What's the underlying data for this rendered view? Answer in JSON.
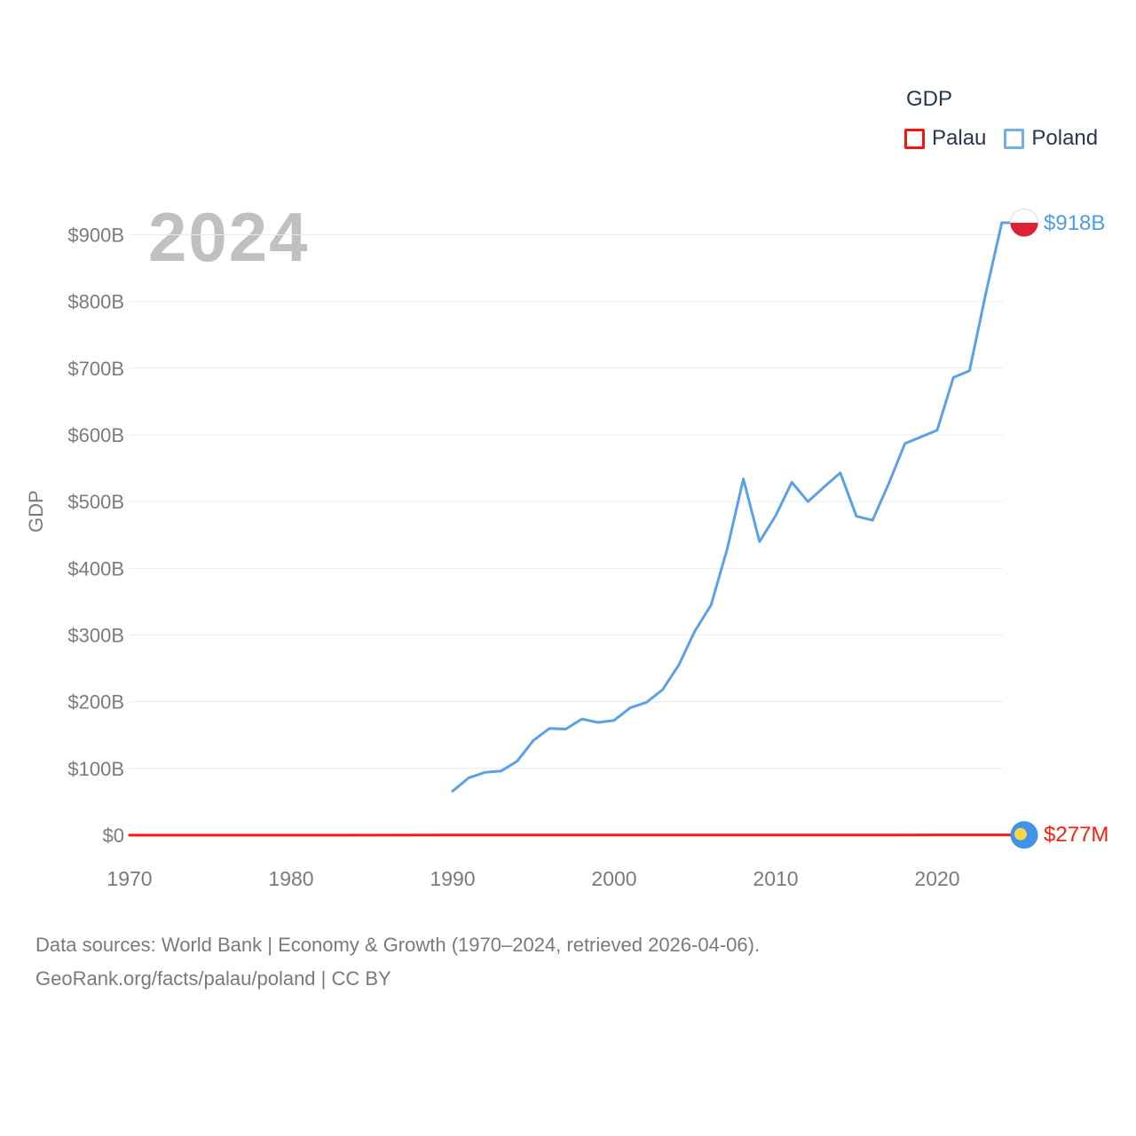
{
  "legend": {
    "title": "GDP",
    "items": [
      {
        "label": "Palau",
        "swatch_color": "#f6130a"
      },
      {
        "label": "Poland",
        "swatch_color": "#74aee9"
      }
    ]
  },
  "watermark": "2024",
  "end_labels": {
    "poland": {
      "text": "$918B",
      "color": "#4f9ce4"
    },
    "palau": {
      "text": "$277M",
      "color": "#fb1d12"
    }
  },
  "footer": {
    "line1": "Data sources: World Bank | Economy & Growth (1970–2024, retrieved 2026-04-06).",
    "line2": "GeoRank.org/facts/palau/poland | CC BY"
  },
  "colors": {
    "gridline": "#eaeaea",
    "tick_text": "#7b7b7b",
    "legend_text": "#26374f",
    "watermark": "#c0c0c0",
    "poland_line": "#5ba1e6",
    "palau_line": "#f9160c",
    "poland_flag_red": "#db2333",
    "poland_flag_white": "#ffffff",
    "poland_flag_border": "#dcdcdc",
    "palau_flag_blue": "#3f93e8",
    "palau_flag_yellow": "#f9d54a"
  },
  "chart_data": {
    "type": "line",
    "title": "",
    "xlabel": "",
    "ylabel": "GDP",
    "unit": "USD billions (current US$)",
    "xlim": [
      1970,
      2025.5
    ],
    "ylim": [
      0,
      930
    ],
    "grid": "horizontal",
    "legend_position": "top-right",
    "x_ticks": [
      1970,
      1980,
      1990,
      2000,
      2010,
      2020
    ],
    "y_ticks": [
      {
        "value": 0,
        "label": "$0"
      },
      {
        "value": 100,
        "label": "$100B"
      },
      {
        "value": 200,
        "label": "$200B"
      },
      {
        "value": 300,
        "label": "$300B"
      },
      {
        "value": 400,
        "label": "$400B"
      },
      {
        "value": 500,
        "label": "$500B"
      },
      {
        "value": 600,
        "label": "$600B"
      },
      {
        "value": 700,
        "label": "$700B"
      },
      {
        "value": 800,
        "label": "$800B"
      },
      {
        "value": 900,
        "label": "$900B"
      }
    ],
    "series": [
      {
        "name": "Palau",
        "color": "#f9160c",
        "end_value_label": "$277M",
        "x": [
          1970,
          1980,
          1990,
          2000,
          2010,
          2020,
          2024
        ],
        "y": [
          0.01,
          0.03,
          0.08,
          0.15,
          0.18,
          0.25,
          0.277
        ]
      },
      {
        "name": "Poland",
        "color": "#5ba1e6",
        "end_value_label": "$918B",
        "x": [
          1990,
          1991,
          1992,
          1993,
          1994,
          1995,
          1996,
          1997,
          1998,
          1999,
          2000,
          2001,
          2002,
          2003,
          2004,
          2005,
          2006,
          2007,
          2008,
          2009,
          2010,
          2011,
          2012,
          2013,
          2014,
          2015,
          2016,
          2017,
          2018,
          2019,
          2020,
          2021,
          2022,
          2023,
          2024
        ],
        "y": [
          66,
          86,
          94,
          96,
          111,
          142,
          160,
          159,
          174,
          169,
          172,
          191,
          199,
          218,
          255,
          306,
          345,
          429,
          534,
          440,
          479,
          529,
          500,
          522,
          543,
          478,
          472,
          527,
          587,
          597,
          607,
          686,
          696,
          811,
          918
        ]
      }
    ]
  }
}
